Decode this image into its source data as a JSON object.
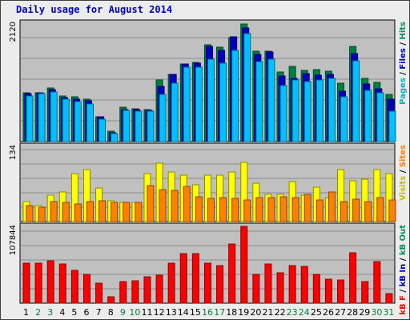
{
  "title": "Daily usage for August 2014",
  "chart_data": {
    "type": "bar",
    "title": "Daily usage for August 2014",
    "categories": [
      "1",
      "2",
      "3",
      "4",
      "5",
      "6",
      "7",
      "8",
      "9",
      "10",
      "11",
      "12",
      "13",
      "14",
      "15",
      "16",
      "17",
      "18",
      "19",
      "20",
      "21",
      "22",
      "23",
      "24",
      "25",
      "26",
      "27",
      "28",
      "29",
      "30",
      "31"
    ],
    "weekend_days": [
      "2",
      "3",
      "9",
      "10",
      "16",
      "17",
      "23",
      "24",
      "30",
      "31"
    ],
    "panels": [
      {
        "id": "hits",
        "ymax": 2120,
        "max_label": "2120",
        "side_labels": [
          {
            "text": "Pages",
            "color": "#00b0c0"
          },
          {
            "text": "Files",
            "color": "#0000c0"
          },
          {
            "text": "Hits",
            "color": "#009060"
          }
        ],
        "series": [
          {
            "name": "Hits",
            "color": "#008040",
            "values": [
              870,
              880,
              960,
              820,
              800,
              760,
              440,
              180,
              610,
              590,
              570,
              1100,
              1210,
              1390,
              1420,
              1740,
              1690,
              1860,
              2110,
              1620,
              1620,
              1250,
              1350,
              1270,
              1290,
              1260,
              1040,
              1700,
              1130,
              1060,
              840
            ]
          },
          {
            "name": "Files",
            "color": "#0000c0",
            "values": [
              860,
              870,
              930,
              790,
              760,
              730,
              440,
              160,
              580,
              580,
              560,
              990,
              1200,
              1390,
              1410,
              1710,
              1640,
              1870,
              2030,
              1560,
              1600,
              1170,
              1130,
              1220,
              1190,
              1210,
              900,
              1570,
              1030,
              950,
              760
            ]
          },
          {
            "name": "Pages",
            "color": "#00c0ff",
            "values": [
              820,
              860,
              890,
              760,
              710,
              670,
              400,
              140,
              560,
              550,
              540,
              840,
              1050,
              1330,
              1330,
              1480,
              1410,
              1640,
              1930,
              1430,
              1470,
              1000,
              1100,
              1080,
              1110,
              1130,
              800,
              1440,
              910,
              880,
              540
            ]
          }
        ]
      },
      {
        "id": "visits",
        "ymax": 134,
        "max_label": "134",
        "side_labels": [
          {
            "text": "Visits",
            "color": "#c0c000"
          },
          {
            "text": "Sites",
            "color": "#ff8000"
          }
        ],
        "series": [
          {
            "name": "Visits",
            "color": "#ffff00",
            "values": [
              35,
              29,
              47,
              53,
              86,
              92,
              60,
              37,
              34,
              34,
              85,
              104,
              89,
              83,
              65,
              83,
              82,
              89,
              105,
              69,
              48,
              49,
              71,
              47,
              61,
              43,
              92,
              72,
              76,
              92,
              86
            ]
          },
          {
            "name": "Sites",
            "color": "#ff8000",
            "values": [
              29,
              26,
              35,
              34,
              31,
              36,
              37,
              34,
              34,
              34,
              64,
              57,
              55,
              63,
              44,
              42,
              43,
              41,
              38,
              43,
              43,
              44,
              43,
              48,
              39,
              53,
              36,
              40,
              35,
              43,
              39
            ]
          }
        ]
      },
      {
        "id": "kbytes",
        "ymax": 107844,
        "max_label": "107844",
        "side_labels": [
          {
            "text": "kB F",
            "color": "#ff0000"
          },
          {
            "text": "kB In",
            "color": "#0000c0"
          },
          {
            "text": "kB Out",
            "color": "#009060"
          }
        ],
        "series": [
          {
            "name": "kB F",
            "color": "#ff0000",
            "values": [
              56000,
              56000,
              59000,
              55000,
              46000,
              41000,
              28000,
              9000,
              30000,
              32000,
              37000,
              39000,
              56000,
              70000,
              70000,
              56000,
              53000,
              83000,
              107844,
              41000,
              55000,
              43000,
              53000,
              52000,
              40000,
              34000,
              33000,
              71000,
              30000,
              58000,
              13000
            ]
          }
        ]
      }
    ]
  }
}
